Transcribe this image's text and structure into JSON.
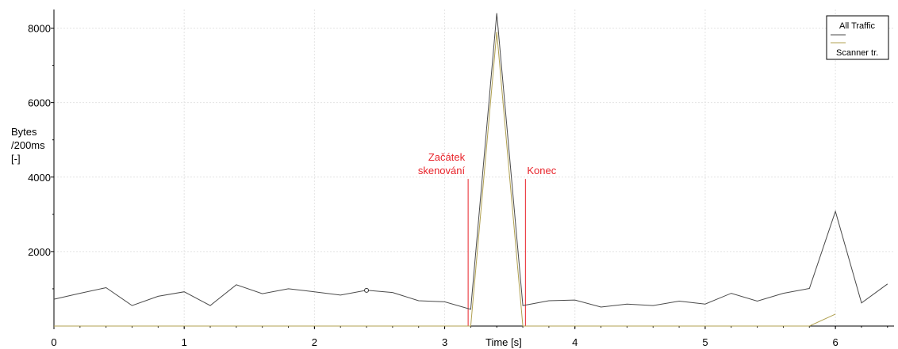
{
  "chart_data": {
    "type": "line",
    "xlabel": "Time [s]",
    "ylabel_lines": [
      "Bytes",
      "/200ms",
      "[-]"
    ],
    "xlim": [
      0,
      6.45
    ],
    "ylim": [
      0,
      8500
    ],
    "x_ticks": [
      0,
      1,
      2,
      3,
      4,
      5,
      6
    ],
    "x_tick_labels": [
      "0",
      "1",
      "2",
      "3",
      "4",
      "5",
      "6"
    ],
    "y_ticks": [
      2000,
      4000,
      6000,
      8000
    ],
    "y_tick_labels": [
      "2000",
      "4000",
      "6000",
      "8000"
    ],
    "grid": true,
    "legend_position": "top-right",
    "series": [
      {
        "name": "All Traffic",
        "color": "#4a4a4a",
        "x": [
          0,
          0.2,
          0.4,
          0.6,
          0.8,
          1.0,
          1.2,
          1.4,
          1.6,
          1.8,
          2.0,
          2.2,
          2.4,
          2.6,
          2.8,
          3.0,
          3.2,
          3.4,
          3.6,
          3.8,
          4.0,
          4.2,
          4.4,
          4.6,
          4.8,
          5.0,
          5.2,
          5.4,
          5.6,
          5.8,
          6.0,
          6.2,
          6.4
        ],
        "y": [
          720,
          880,
          1030,
          550,
          800,
          920,
          550,
          1110,
          870,
          1000,
          920,
          830,
          960,
          900,
          680,
          650,
          450,
          8400,
          550,
          680,
          700,
          510,
          590,
          550,
          670,
          590,
          880,
          670,
          880,
          1010,
          3080,
          620,
          1130
        ]
      },
      {
        "name": "Scanner tr.",
        "color": "#b0a050",
        "x": [
          0,
          3.2,
          3.4,
          3.6,
          5.8,
          6.0
        ],
        "y": [
          0,
          0,
          7900,
          0,
          0,
          320
        ]
      }
    ],
    "marker": {
      "x": 2.4,
      "y": 960
    },
    "annotations": [
      {
        "lines": [
          "Začátek",
          "skenování"
        ],
        "x": 3.18,
        "y_top": 3950,
        "color": "#e8232a"
      },
      {
        "lines": [
          "Konec"
        ],
        "x": 3.62,
        "y_top": 3950,
        "color": "#e8232a"
      }
    ]
  }
}
